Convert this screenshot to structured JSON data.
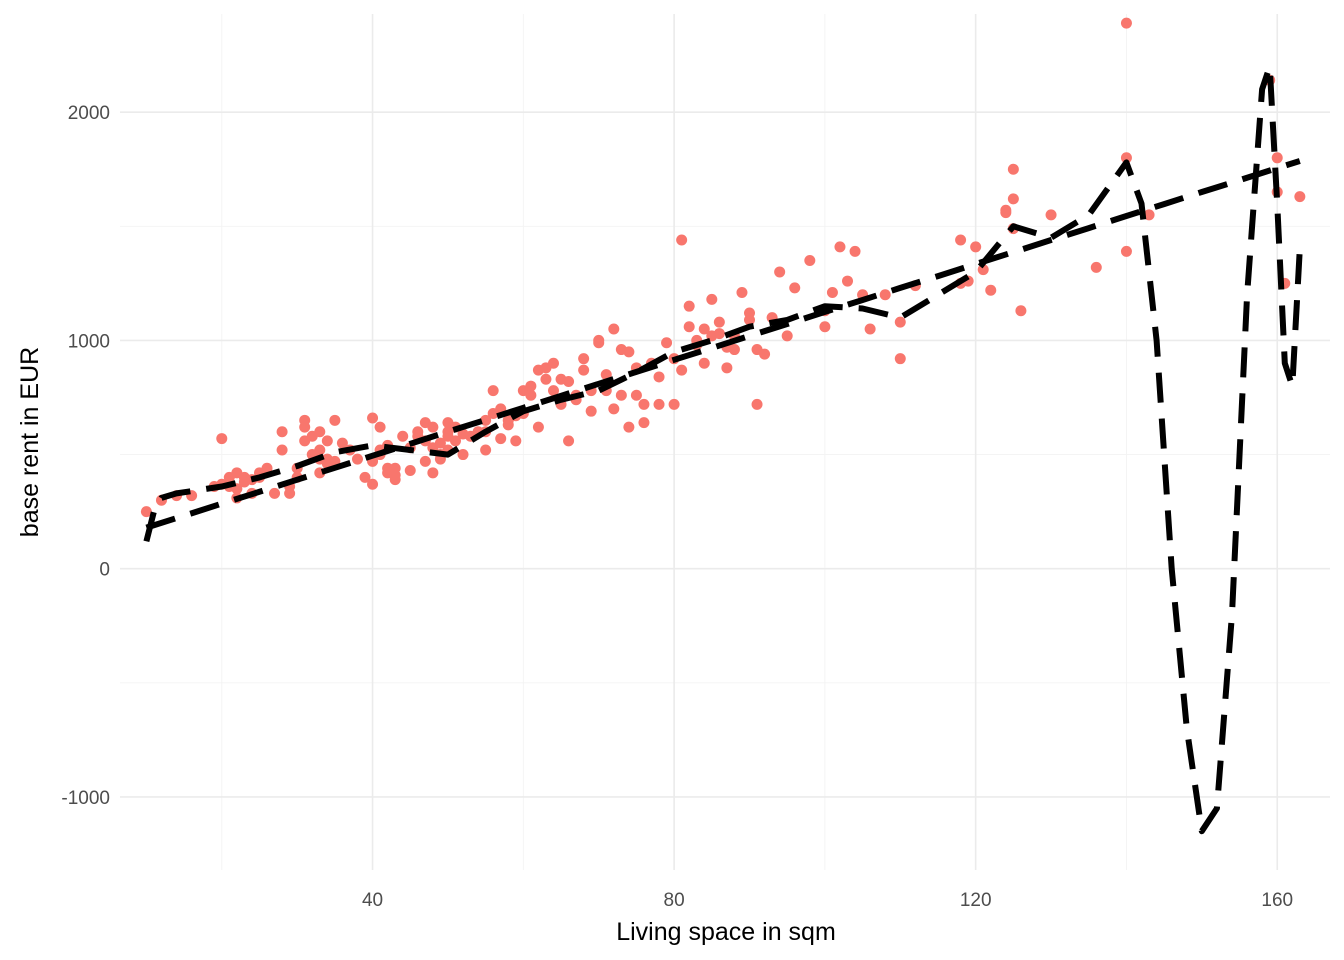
{
  "chart_data": {
    "type": "scatter",
    "title": "",
    "xlabel": "Living space in sqm",
    "ylabel": "base rent in EUR",
    "xlim": [
      6.5,
      167
    ],
    "ylim": [
      -1320,
      2430
    ],
    "x_ticks": [
      40,
      80,
      120,
      160
    ],
    "x_tick_labels": [
      "40",
      "80",
      "120",
      "160"
    ],
    "y_ticks": [
      -1000,
      0,
      1000,
      2000
    ],
    "y_tick_labels": [
      "-1000",
      "0",
      "1000",
      "2000"
    ],
    "grid": true,
    "legend": "none",
    "point_color": "#F8766D",
    "line_color": "#000000",
    "series": [
      {
        "kind": "points",
        "x": [
          10,
          12,
          14,
          16,
          19,
          20,
          20,
          21,
          21,
          22,
          22,
          22,
          23,
          23,
          24,
          24,
          25,
          25,
          26,
          27,
          28,
          28,
          29,
          29,
          30,
          30,
          31,
          31,
          31,
          32,
          32,
          33,
          33,
          33,
          33,
          34,
          34,
          34,
          35,
          35,
          36,
          37,
          38,
          39,
          40,
          40,
          40,
          41,
          41,
          41,
          42,
          42,
          42,
          43,
          43,
          43,
          44,
          45,
          45,
          46,
          46,
          47,
          47,
          47,
          48,
          48,
          48,
          49,
          49,
          49,
          50,
          50,
          50,
          50,
          51,
          51,
          52,
          52,
          53,
          54,
          55,
          55,
          55,
          56,
          56,
          57,
          57,
          58,
          58,
          59,
          59,
          60,
          60,
          61,
          61,
          62,
          62,
          63,
          63,
          64,
          64,
          65,
          65,
          66,
          66,
          67,
          67,
          68,
          68,
          69,
          69,
          70,
          70,
          71,
          71,
          72,
          72,
          73,
          73,
          74,
          74,
          75,
          75,
          76,
          76,
          77,
          78,
          78,
          79,
          80,
          80,
          81,
          81,
          82,
          82,
          83,
          83,
          84,
          84,
          85,
          85,
          86,
          86,
          87,
          87,
          88,
          88,
          89,
          90,
          90,
          91,
          91,
          92,
          93,
          94,
          95,
          96,
          98,
          100,
          100,
          101,
          102,
          103,
          104,
          105,
          106,
          108,
          110,
          110,
          112,
          118,
          118,
          119,
          120,
          121,
          122,
          124,
          124,
          125,
          125,
          125,
          126,
          130,
          136,
          140,
          140,
          140,
          143,
          159,
          160,
          160,
          161,
          163
        ],
        "y": [
          250,
          300,
          320,
          320,
          360,
          370,
          570,
          360,
          400,
          310,
          350,
          420,
          380,
          400,
          390,
          330,
          400,
          420,
          440,
          330,
          520,
          600,
          360,
          330,
          400,
          440,
          560,
          620,
          650,
          500,
          580,
          600,
          520,
          480,
          420,
          460,
          560,
          480,
          470,
          650,
          550,
          520,
          480,
          400,
          370,
          470,
          660,
          520,
          500,
          620,
          540,
          440,
          420,
          390,
          410,
          440,
          580,
          430,
          530,
          580,
          600,
          470,
          560,
          640,
          620,
          420,
          530,
          480,
          500,
          550,
          580,
          600,
          640,
          520,
          620,
          560,
          590,
          500,
          580,
          600,
          650,
          520,
          600,
          780,
          680,
          700,
          570,
          650,
          630,
          560,
          670,
          780,
          680,
          800,
          760,
          620,
          870,
          830,
          880,
          900,
          780,
          720,
          830,
          820,
          560,
          760,
          740,
          870,
          920,
          780,
          690,
          990,
          1000,
          780,
          850,
          1050,
          700,
          960,
          760,
          950,
          620,
          880,
          760,
          720,
          640,
          900,
          840,
          720,
          990,
          720,
          920,
          870,
          1440,
          1150,
          1060,
          1000,
          980,
          900,
          1050,
          1020,
          1180,
          1030,
          1080,
          880,
          970,
          1020,
          960,
          1210,
          1090,
          1120,
          960,
          720,
          940,
          1100,
          1300,
          1020,
          1230,
          1350,
          1060,
          1130,
          1210,
          1410,
          1260,
          1390,
          1200,
          1050,
          1200,
          1080,
          920,
          1240,
          1250,
          1440,
          1260,
          1410,
          1310,
          1220,
          1560,
          1570,
          1750,
          1490,
          1620,
          1130,
          1550,
          1320,
          1800,
          1390,
          2390,
          1550,
          2140,
          1800,
          1650,
          1250,
          1630
        ],
        "name": ""
      },
      {
        "kind": "line",
        "dash": "long",
        "x": [
          10,
          15,
          20,
          25,
          30,
          35,
          40,
          45,
          50,
          55,
          60,
          65,
          70,
          75,
          80,
          85,
          90,
          95,
          100,
          105,
          110,
          115,
          120,
          125,
          130,
          135,
          140,
          145,
          150,
          155,
          160,
          163
        ],
        "y": [
          180,
          232,
          285,
          337,
          390,
          442,
          495,
          547,
          600,
          652,
          705,
          757,
          810,
          862,
          915,
          967,
          1020,
          1072,
          1125,
          1177,
          1230,
          1282,
          1335,
          1387,
          1440,
          1492,
          1545,
          1597,
          1650,
          1702,
          1755,
          1786
        ],
        "name": ""
      },
      {
        "kind": "line",
        "dash": "long",
        "x": [
          10,
          11,
          12,
          13,
          14,
          16,
          20,
          25,
          30,
          35,
          40,
          45,
          50,
          55,
          60,
          65,
          70,
          75,
          80,
          85,
          90,
          95,
          100,
          105,
          110,
          115,
          120,
          125,
          130,
          135,
          140,
          142,
          144,
          146,
          148,
          150,
          152,
          154,
          156,
          158,
          159,
          160,
          161,
          162,
          163
        ],
        "y": [
          120,
          250,
          310,
          320,
          330,
          340,
          360,
          400,
          450,
          510,
          540,
          520,
          500,
          600,
          690,
          740,
          780,
          860,
          950,
          1000,
          1060,
          1090,
          1150,
          1140,
          1100,
          1200,
          1300,
          1500,
          1450,
          1550,
          1780,
          1600,
          1000,
          0,
          -700,
          -1150,
          -1050,
          -200,
          1200,
          2100,
          2200,
          1600,
          900,
          800,
          1400
        ],
        "name": ""
      }
    ]
  }
}
